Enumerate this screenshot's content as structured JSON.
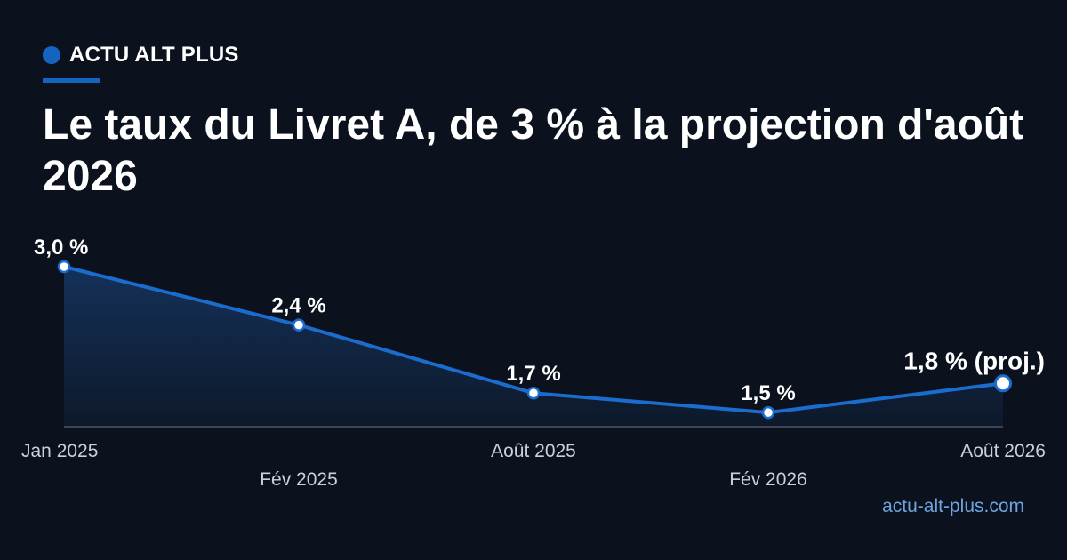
{
  "brand": {
    "name": "ACTU ALT PLUS",
    "url": "actu-alt-plus.com"
  },
  "colors": {
    "background": "#0b121e",
    "accent": "#1565c0",
    "line": "#1b6ccf",
    "axis": "#3a4656",
    "tick": "#c9d1dc",
    "url": "#6ea3dd"
  },
  "chart_data": {
    "type": "area",
    "title": "Le taux du Livret A, de 3 % à la projection d'août 2026",
    "x": [
      "Jan 2025",
      "Fév 2025",
      "Août 2025",
      "Fév 2026",
      "Août 2026"
    ],
    "values": [
      3.0,
      2.4,
      1.7,
      1.5,
      1.8
    ],
    "data_labels": [
      "3,0 %",
      "2,4 %",
      "1,7 %",
      "1,5 %",
      "1,8 % (proj.)"
    ],
    "projected_index": 4,
    "xlabel": "",
    "ylabel": "",
    "y_axis_visible": false,
    "grid": false,
    "legend": "none"
  }
}
